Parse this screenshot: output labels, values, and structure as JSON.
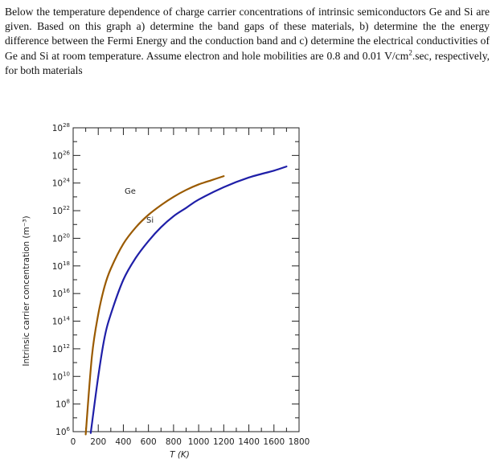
{
  "question": {
    "line1": "Below the temperature dependence of charge carrier concentrations of intrinsic",
    "line2": "semiconductors Ge and Si are given. Based on this graph a) determine the band gaps of these",
    "line3": "materials, b) determine the the energy difference between the Fermi Energy and the",
    "line4": "conduction band and c) determine the electrical conductivities of Ge and Si at room",
    "line5a": "temperature. Assume electron and hole mobilities are 0.8 and 0.01 V/cm",
    "line5sup": "2",
    "line5b": ".sec, respectively,",
    "line6": "for both materials"
  },
  "chart_data": {
    "type": "line",
    "xlabel": "T (K)",
    "ylabel": "Intrinsic carrier concentration (m⁻³)",
    "xlim": [
      0,
      1800
    ],
    "ylim_exponent": [
      6,
      28
    ],
    "yscale": "log",
    "x_ticks": [
      "0",
      "200",
      "400",
      "600",
      "800",
      "1000",
      "1200",
      "1400",
      "1600",
      "1800"
    ],
    "y_ticks": [
      {
        "base": "10",
        "exp": "6"
      },
      {
        "base": "10",
        "exp": "8"
      },
      {
        "base": "10",
        "exp": "10"
      },
      {
        "base": "10",
        "exp": "12"
      },
      {
        "base": "10",
        "exp": "14"
      },
      {
        "base": "10",
        "exp": "16"
      },
      {
        "base": "10",
        "exp": "18"
      },
      {
        "base": "10",
        "exp": "20"
      },
      {
        "base": "10",
        "exp": "22"
      },
      {
        "base": "10",
        "exp": "24"
      },
      {
        "base": "10",
        "exp": "26"
      },
      {
        "base": "10",
        "exp": "28"
      }
    ],
    "series": [
      {
        "name": "Ge",
        "color": "#9a5a00",
        "x": [
          100,
          150,
          200,
          250,
          300,
          400,
          500,
          600,
          700,
          800,
          900,
          1000,
          1100,
          1200
        ],
        "log10_y": [
          5.8,
          11.5,
          14.5,
          16.5,
          17.8,
          19.6,
          20.8,
          21.7,
          22.4,
          23.0,
          23.5,
          23.9,
          24.2,
          24.5
        ]
      },
      {
        "name": "Si",
        "color": "#1f1fa8",
        "x": [
          140,
          200,
          250,
          300,
          400,
          500,
          600,
          700,
          800,
          900,
          1000,
          1200,
          1400,
          1600,
          1700
        ],
        "log10_y": [
          5.9,
          10.0,
          12.8,
          14.5,
          17.0,
          18.6,
          19.8,
          20.8,
          21.6,
          22.2,
          22.8,
          23.7,
          24.4,
          24.9,
          25.2
        ]
      }
    ]
  }
}
